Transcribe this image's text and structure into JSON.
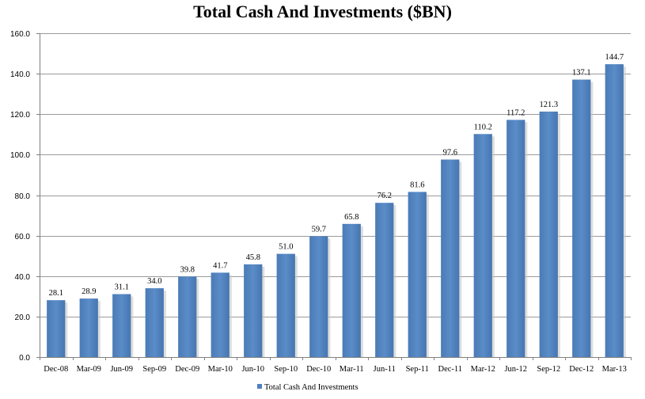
{
  "chart_data": {
    "type": "bar",
    "title": "Total Cash And Investments ($BN)",
    "categories": [
      "Dec-08",
      "Mar-09",
      "Jun-09",
      "Sep-09",
      "Dec-09",
      "Mar-10",
      "Jun-10",
      "Sep-10",
      "Dec-10",
      "Mar-11",
      "Jun-11",
      "Sep-11",
      "Dec-11",
      "Mar-12",
      "Jun-12",
      "Sep-12",
      "Dec-12",
      "Mar-13"
    ],
    "series": [
      {
        "name": "Total Cash And Investments",
        "values": [
          28.1,
          28.9,
          31.1,
          34.0,
          39.8,
          41.7,
          45.8,
          51.0,
          59.7,
          65.8,
          76.2,
          81.6,
          97.6,
          110.2,
          117.2,
          121.3,
          137.1,
          144.7
        ],
        "data_labels": [
          "28.1",
          "28.9",
          "31.1",
          "34.0",
          "39.8",
          "41.7",
          "45.8",
          "51.0",
          "59.7",
          "65.8",
          "76.2",
          "81.6",
          "97.6",
          "110.2",
          "117.2",
          "121.3",
          "137.1",
          "144.7"
        ],
        "color": "#4f81bd"
      }
    ],
    "ylim": [
      0,
      160
    ],
    "yticks": [
      "0.0",
      "20.0",
      "40.0",
      "60.0",
      "80.0",
      "100.0",
      "120.0",
      "140.0",
      "160.0"
    ],
    "xlabel": "",
    "ylabel": "",
    "grid": true,
    "legend": "bottom"
  }
}
